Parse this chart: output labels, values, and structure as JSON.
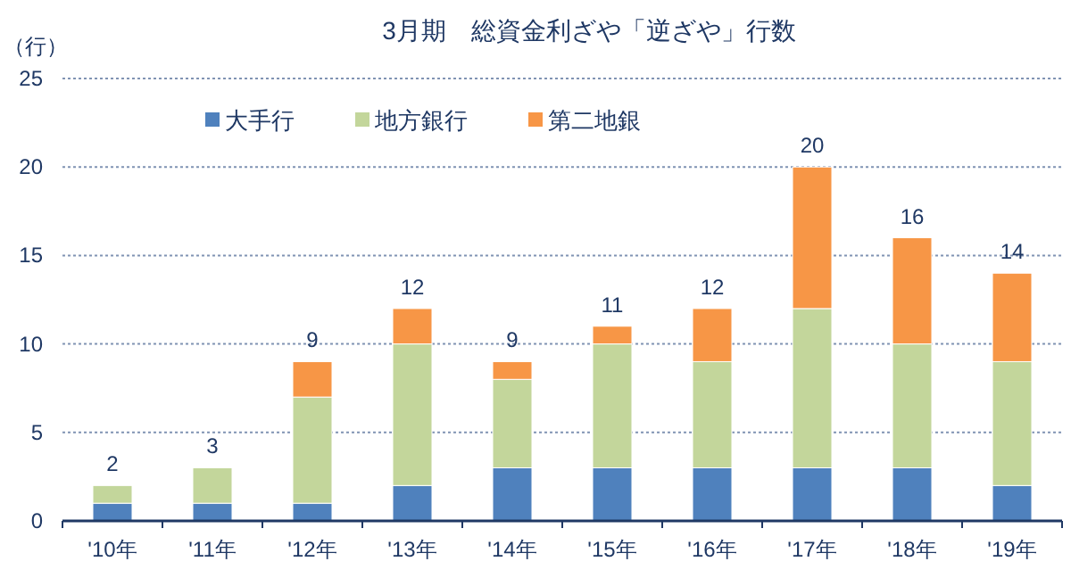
{
  "chart_data": {
    "type": "bar",
    "title": "3月期　総資金利ざや「逆ざや」行数",
    "ylabel": "（行）",
    "stacked": true,
    "categories": [
      "'10年",
      "'11年",
      "'12年",
      "'13年",
      "'14年",
      "'15年",
      "'16年",
      "'17年",
      "'18年",
      "'19年"
    ],
    "series": [
      {
        "name": "大手行",
        "color": "#4f81bd",
        "values": [
          1,
          1,
          1,
          2,
          3,
          3,
          3,
          3,
          3,
          2
        ]
      },
      {
        "name": "地方銀行",
        "color": "#c3d69b",
        "values": [
          1,
          2,
          6,
          8,
          5,
          7,
          6,
          9,
          7,
          7
        ]
      },
      {
        "name": "第二地銀",
        "color": "#f79646",
        "values": [
          0,
          0,
          2,
          2,
          1,
          1,
          3,
          8,
          6,
          5
        ]
      }
    ],
    "totals": [
      "2",
      "3",
      "9",
      "12",
      "9",
      "11",
      "12",
      "20",
      "16",
      "14"
    ],
    "ylim": [
      0,
      25
    ],
    "yticks": [
      0,
      5,
      10,
      15,
      20,
      25
    ],
    "grid": "y",
    "legend": "top"
  }
}
